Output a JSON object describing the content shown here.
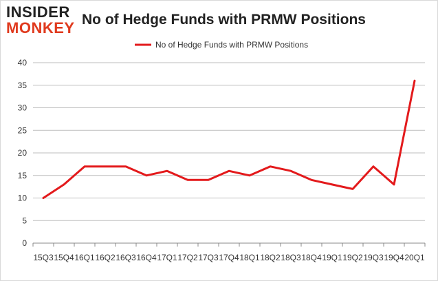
{
  "logo": {
    "top": "INSIDER",
    "bottom": "MONKEY"
  },
  "chart_data": {
    "type": "line",
    "title": "No of Hedge Funds with PRMW Positions",
    "xlabel": "",
    "ylabel": "",
    "categories": [
      "15Q3",
      "15Q4",
      "16Q1",
      "16Q2",
      "16Q3",
      "16Q4",
      "17Q1",
      "17Q2",
      "17Q3",
      "17Q4",
      "18Q1",
      "18Q2",
      "18Q3",
      "18Q4",
      "19Q1",
      "19Q2",
      "19Q3",
      "19Q4",
      "20Q1"
    ],
    "series": [
      {
        "name": "No of Hedge Funds with PRMW Positions",
        "values": [
          10,
          13,
          17,
          17,
          17,
          15,
          16,
          14,
          14,
          16,
          15,
          17,
          16,
          14,
          13,
          12,
          17,
          13,
          36
        ]
      }
    ],
    "ylim": [
      0,
      40
    ],
    "yticks": [
      0,
      5,
      10,
      15,
      20,
      25,
      30,
      35,
      40
    ],
    "grid": true,
    "legend_position": "top-center",
    "colors": {
      "line": "#e31a1c",
      "grid": "#bdbdbd",
      "axis": "#888888"
    }
  }
}
